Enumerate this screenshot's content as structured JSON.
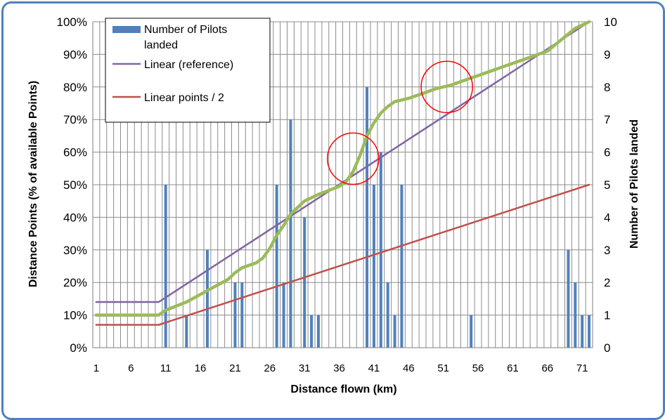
{
  "chart_data": {
    "type": "bar+line",
    "xlabel": "Distance flown (km)",
    "ylabel_left": "Distance Points (% of available Points)",
    "ylabel_right": "Number of Pilots landed",
    "x_range": [
      1,
      72
    ],
    "x_tick_labels": [
      "1",
      "6",
      "11",
      "16",
      "21",
      "26",
      "31",
      "36",
      "41",
      "46",
      "51",
      "56",
      "61",
      "66",
      "71"
    ],
    "y_left_ticks": [
      "0%",
      "10%",
      "20%",
      "30%",
      "40%",
      "50%",
      "60%",
      "70%",
      "80%",
      "90%",
      "100%"
    ],
    "y_right_ticks": [
      "0",
      "1",
      "2",
      "3",
      "4",
      "5",
      "6",
      "7",
      "8",
      "9",
      "10"
    ],
    "ylim_left": [
      0,
      100
    ],
    "ylim_right": [
      0,
      10
    ],
    "grid": "vertical gridlines at every km, horizontal gridlines at every 10%",
    "legend_placement": "top-left",
    "legend": [
      {
        "label": "Number of Pilots landed",
        "kind": "bar"
      },
      {
        "label": "Linear (reference)",
        "kind": "line"
      },
      {
        "label": "Linear points / 2",
        "kind": "line"
      }
    ],
    "bars": {
      "name": "Number of Pilots landed",
      "color": "#4f81bd",
      "axis": "right",
      "points": [
        {
          "x": 11,
          "y": 5
        },
        {
          "x": 14,
          "y": 1
        },
        {
          "x": 17,
          "y": 3
        },
        {
          "x": 21,
          "y": 2
        },
        {
          "x": 22,
          "y": 2
        },
        {
          "x": 27,
          "y": 5
        },
        {
          "x": 28,
          "y": 2
        },
        {
          "x": 29,
          "y": 7
        },
        {
          "x": 31,
          "y": 4
        },
        {
          "x": 32,
          "y": 1
        },
        {
          "x": 33,
          "y": 1
        },
        {
          "x": 40,
          "y": 8
        },
        {
          "x": 41,
          "y": 5
        },
        {
          "x": 42,
          "y": 6
        },
        {
          "x": 43,
          "y": 2
        },
        {
          "x": 44,
          "y": 1
        },
        {
          "x": 45,
          "y": 5
        },
        {
          "x": 55,
          "y": 1
        },
        {
          "x": 69,
          "y": 3
        },
        {
          "x": 70,
          "y": 2
        },
        {
          "x": 71,
          "y": 1
        },
        {
          "x": 72,
          "y": 1
        }
      ]
    },
    "series": [
      {
        "name": "Linear (reference)",
        "color": "#8064a2",
        "axis": "left",
        "points": [
          [
            1,
            14
          ],
          [
            10,
            14
          ],
          [
            72,
            100
          ]
        ]
      },
      {
        "name": "Linear points / 2",
        "color": "#c0504d",
        "axis": "left",
        "points": [
          [
            1,
            7
          ],
          [
            10,
            7
          ],
          [
            72,
            50
          ]
        ]
      },
      {
        "name": "",
        "color": "#9bbb59",
        "axis": "left",
        "points": [
          [
            1,
            10
          ],
          [
            10,
            10
          ],
          [
            11,
            11.5
          ],
          [
            14,
            14
          ],
          [
            17,
            17.5
          ],
          [
            20,
            21
          ],
          [
            21,
            23
          ],
          [
            22,
            24.5
          ],
          [
            24,
            26
          ],
          [
            25,
            27.5
          ],
          [
            26,
            30.5
          ],
          [
            27,
            34.5
          ],
          [
            28,
            37.5
          ],
          [
            29,
            41
          ],
          [
            31,
            45
          ],
          [
            33,
            47
          ],
          [
            36,
            49.5
          ],
          [
            37,
            51
          ],
          [
            38,
            54
          ],
          [
            39,
            59
          ],
          [
            40,
            65
          ],
          [
            41,
            69
          ],
          [
            42,
            72
          ],
          [
            43,
            74
          ],
          [
            44,
            75.5
          ],
          [
            46,
            76.5
          ],
          [
            48,
            78
          ],
          [
            50,
            79.5
          ],
          [
            52,
            80.5
          ],
          [
            54,
            82
          ],
          [
            56,
            83.5
          ],
          [
            58,
            85
          ],
          [
            60,
            86.5
          ],
          [
            62,
            88
          ],
          [
            64,
            89.5
          ],
          [
            66,
            91
          ],
          [
            68,
            94.5
          ],
          [
            70,
            98
          ],
          [
            72,
            100
          ]
        ]
      }
    ],
    "annotations": [
      {
        "shape": "circle",
        "color": "#ff0000",
        "center": {
          "x": 38,
          "y": 58
        },
        "radius_x_units": 3.5
      },
      {
        "shape": "circle",
        "color": "#ff0000",
        "center": {
          "x": 51.5,
          "y": 80
        },
        "radius_x_units": 3.5
      }
    ]
  }
}
